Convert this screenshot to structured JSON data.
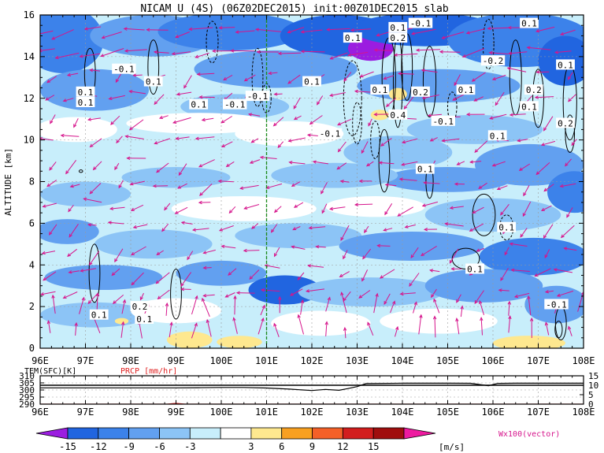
{
  "figure": {
    "title": "NICAM U (4S) (06Z02DEC2015) init:00Z01DEC2015 slab"
  },
  "chart_data": [
    {
      "type": "heatmap",
      "title": "NICAM U (4S) (06Z02DEC2015) init:00Z01DEC2015 slab",
      "xlabel": "",
      "ylabel": "ALTITUDE [km]",
      "x_ticks": [
        "96E",
        "97E",
        "98E",
        "99E",
        "100E",
        "101E",
        "102E",
        "103E",
        "104E",
        "105E",
        "106E",
        "107E",
        "108E"
      ],
      "y_ticks": [
        0,
        2,
        4,
        6,
        8,
        10,
        12,
        14,
        16
      ],
      "xlim": [
        96,
        108
      ],
      "ylim": [
        0,
        16
      ],
      "grid": true,
      "reference_line_lon": 101,
      "contour_labels": [
        {
          "text": "-0.1",
          "lon": 97.85,
          "alt": 13.4
        },
        {
          "text": "0.1",
          "lon": 97.0,
          "alt": 12.3
        },
        {
          "text": "0.1",
          "lon": 97.0,
          "alt": 11.8
        },
        {
          "text": "0.1",
          "lon": 98.5,
          "alt": 12.8
        },
        {
          "text": "0.1",
          "lon": 99.5,
          "alt": 11.7
        },
        {
          "text": "-0.1",
          "lon": 100.3,
          "alt": 11.7
        },
        {
          "text": "-0.1",
          "lon": 100.8,
          "alt": 12.1
        },
        {
          "text": "0.1",
          "lon": 102.0,
          "alt": 12.8
        },
        {
          "text": "-0.1",
          "lon": 102.4,
          "alt": 10.3
        },
        {
          "text": "0.1",
          "lon": 102.9,
          "alt": 14.9
        },
        {
          "text": "0.1",
          "lon": 103.5,
          "alt": 12.4
        },
        {
          "text": "0.1",
          "lon": 103.9,
          "alt": 15.4
        },
        {
          "text": "0.2",
          "lon": 103.9,
          "alt": 14.9
        },
        {
          "text": "0.4",
          "lon": 103.9,
          "alt": 11.2
        },
        {
          "text": "0.2",
          "lon": 104.4,
          "alt": 12.3
        },
        {
          "text": "-0.1",
          "lon": 104.4,
          "alt": 15.6
        },
        {
          "text": "0.1",
          "lon": 104.5,
          "alt": 8.6
        },
        {
          "text": "-0.1",
          "lon": 104.9,
          "alt": 10.9
        },
        {
          "text": "0.1",
          "lon": 105.4,
          "alt": 12.4
        },
        {
          "text": "0.1",
          "lon": 106.8,
          "alt": 15.6
        },
        {
          "text": "-0.2",
          "lon": 106.0,
          "alt": 13.8
        },
        {
          "text": "0.1",
          "lon": 106.1,
          "alt": 10.2
        },
        {
          "text": "0.2",
          "lon": 106.9,
          "alt": 12.4
        },
        {
          "text": "0.1",
          "lon": 106.8,
          "alt": 11.6
        },
        {
          "text": "0.1",
          "lon": 107.6,
          "alt": 13.6
        },
        {
          "text": "0.2",
          "lon": 107.6,
          "alt": 10.8
        },
        {
          "text": "0.1",
          "lon": 106.3,
          "alt": 5.8
        },
        {
          "text": "0.1",
          "lon": 105.6,
          "alt": 3.8
        },
        {
          "text": "-0.1",
          "lon": 107.4,
          "alt": 2.1
        },
        {
          "text": "0.2",
          "lon": 98.2,
          "alt": 2.0
        },
        {
          "text": "0.1",
          "lon": 98.3,
          "alt": 1.4
        },
        {
          "text": "0.1",
          "lon": 97.3,
          "alt": 1.6
        }
      ],
      "colorbar": {
        "levels": [
          "-15",
          "-12",
          "-9",
          "-6",
          "-3",
          "3",
          "6",
          "9",
          "12",
          "15"
        ],
        "unit": "[m/s]",
        "colors": [
          "#9b1de0",
          "#2165e0",
          "#3c82ea",
          "#62a0f0",
          "#8cc4f6",
          "#c8eefb",
          "#ffffff",
          "#fee88f",
          "#f8a020",
          "#f46028",
          "#d21e1e",
          "#a00e0e",
          "#ee1aa0"
        ],
        "vector_label": "Wx100(vector)",
        "vector_color": "#d6158c"
      }
    },
    {
      "type": "line",
      "title": "",
      "xlabel": "",
      "x_ticks": [
        "96E",
        "97E",
        "98E",
        "99E",
        "100E",
        "101E",
        "102E",
        "103E",
        "104E",
        "105E",
        "106E",
        "107E",
        "108E"
      ],
      "y_left_label": "TEM(SFC)[K]",
      "y_right_label": "PRCP [mm/hr]",
      "y_left_ticks": [
        290,
        295,
        300,
        305,
        310
      ],
      "y_right_ticks": [
        0,
        5,
        10,
        15
      ],
      "series": [
        {
          "name": "TEM(SFC)[K]",
          "color": "#000000",
          "x": [
            96,
            97,
            98,
            99,
            99.5,
            100,
            100.5,
            101,
            101.5,
            102,
            102.3,
            102.6,
            102.8,
            103,
            103.2,
            104,
            105,
            105.5,
            105.9,
            106.1,
            106.5,
            107,
            108
          ],
          "y": [
            301.5,
            301.5,
            301.5,
            301.5,
            301.6,
            301.8,
            301.8,
            301.4,
            300.6,
            299.6,
            300.4,
            299.8,
            301.0,
            302.4,
            304.5,
            304.8,
            304.8,
            304.7,
            303.0,
            304.6,
            304.8,
            304.8,
            304.8
          ]
        },
        {
          "name": "PRCP [mm/hr]",
          "color": "#e02020",
          "x": [
            96,
            97,
            98,
            98.8,
            99,
            99.2,
            100,
            102,
            104,
            106,
            107,
            108
          ],
          "y": [
            0,
            0,
            0,
            0,
            0.4,
            0,
            0,
            0,
            0,
            0,
            0,
            0
          ]
        }
      ]
    }
  ]
}
